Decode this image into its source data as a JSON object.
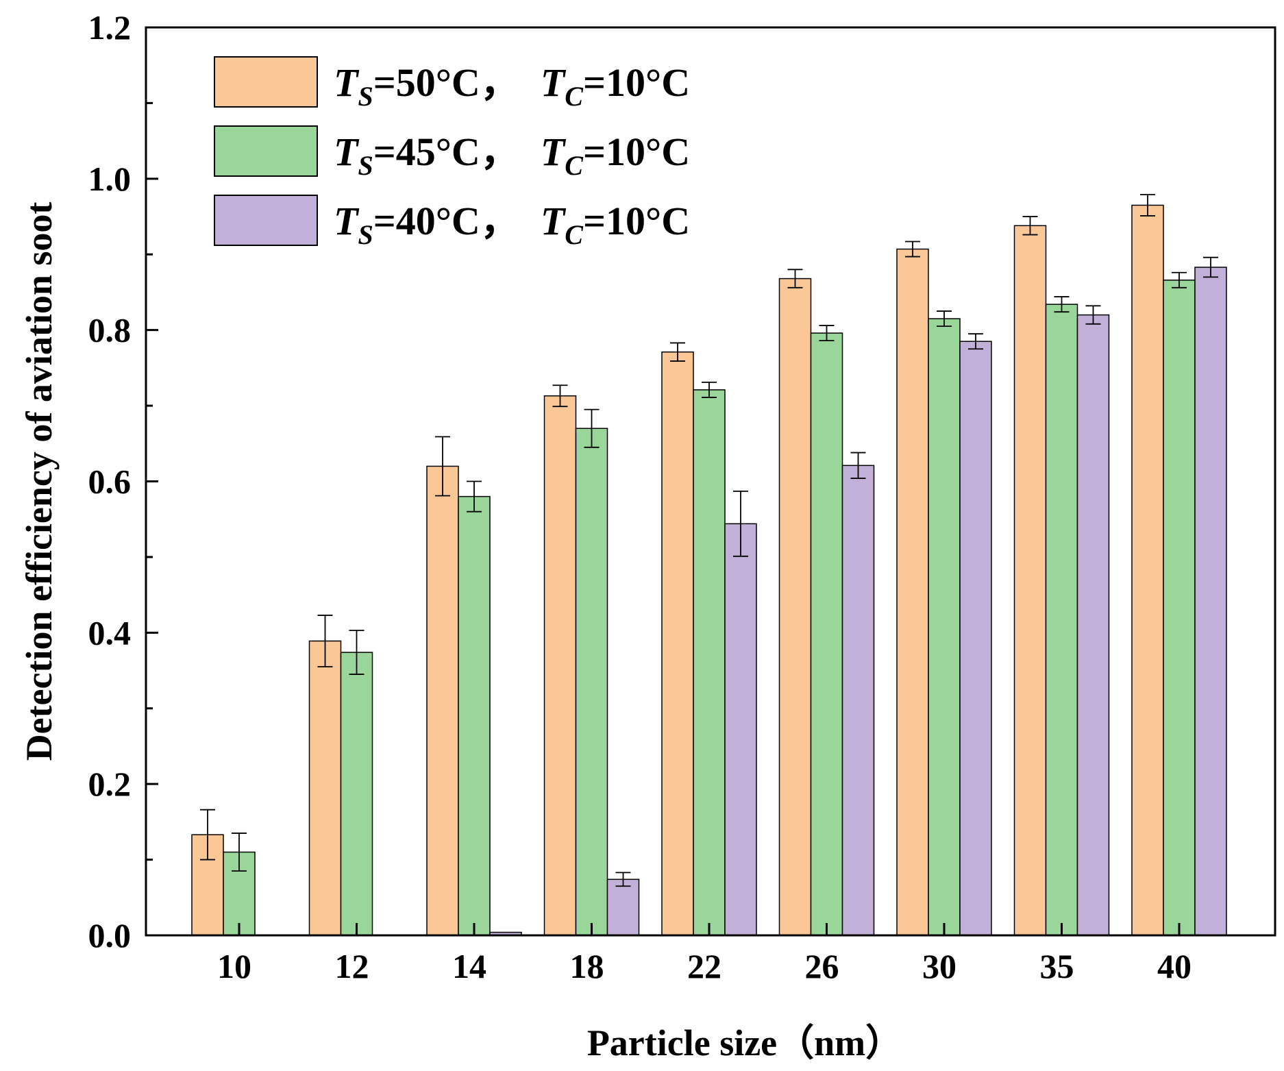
{
  "chart_data": {
    "type": "bar",
    "title": "",
    "xlabel": "Particle size（nm）",
    "ylabel": "Detection efficiency of aviation soot",
    "ylim": [
      0,
      1.2
    ],
    "yticks": [
      "0.0",
      "0.2",
      "0.4",
      "0.6",
      "0.8",
      "1.0",
      "1.2"
    ],
    "categories": [
      "10",
      "12",
      "14",
      "18",
      "22",
      "26",
      "30",
      "35",
      "40"
    ],
    "legend_position": "top-left",
    "series": [
      {
        "name": "TS=50°C, TC=10°C",
        "legend": {
          "t1": "T",
          "s1": "S",
          "mid": "=50°C，",
          "t2": "T",
          "s2": "C",
          "end": "=10°C"
        },
        "color": "#FAC896",
        "values": [
          0.133,
          0.389,
          0.62,
          0.713,
          0.771,
          0.868,
          0.907,
          0.938,
          0.965
        ],
        "errors": [
          0.033,
          0.034,
          0.039,
          0.014,
          0.012,
          0.012,
          0.01,
          0.012,
          0.014
        ]
      },
      {
        "name": "TS=45°C, TC=10°C",
        "legend": {
          "t1": "T",
          "s1": "S",
          "mid": "=45°C，",
          "t2": "T",
          "s2": "C",
          "end": "=10°C"
        },
        "color": "#9AD69A",
        "values": [
          0.11,
          0.374,
          0.58,
          0.67,
          0.721,
          0.796,
          0.815,
          0.834,
          0.866
        ],
        "errors": [
          0.025,
          0.029,
          0.02,
          0.025,
          0.01,
          0.01,
          0.01,
          0.01,
          0.01
        ]
      },
      {
        "name": "TS=40°C, TC=10°C",
        "legend": {
          "t1": "T",
          "s1": "S",
          "mid": "=40°C，",
          "t2": "T",
          "s2": "C",
          "end": "=10°C"
        },
        "color": "#C2B0D8",
        "values": [
          0,
          0,
          0.004,
          0.074,
          0.544,
          0.621,
          0.785,
          0.82,
          0.883
        ],
        "errors": [
          0,
          0,
          0,
          0.009,
          0.043,
          0.017,
          0.01,
          0.012,
          0.013
        ]
      }
    ]
  }
}
